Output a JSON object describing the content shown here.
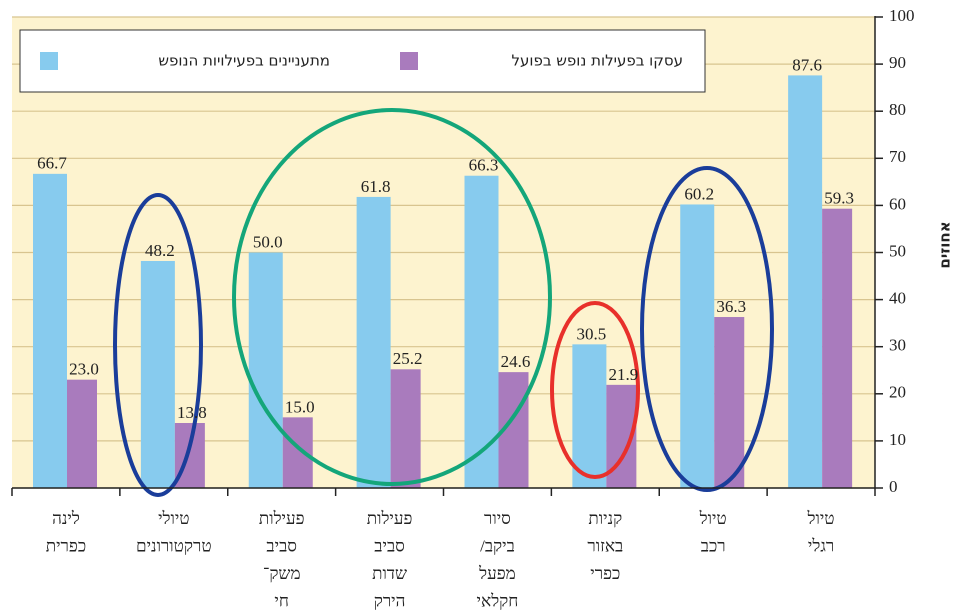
{
  "chart_data": {
    "type": "bar",
    "categories": [
      [
        "לינה",
        "כפרית"
      ],
      [
        "טיולי",
        "טרקטורונים"
      ],
      [
        "פעילות",
        "סביב",
        "משק־",
        "חי"
      ],
      [
        "פעילות",
        "סביב",
        "שדות",
        "הירק"
      ],
      [
        "סיור",
        "ביקב/",
        "מפעל",
        "חקלאי"
      ],
      [
        "קניות",
        "באזור",
        "כפרי"
      ],
      [
        "טיול",
        "רכב"
      ],
      [
        "טיול",
        "רגלי"
      ]
    ],
    "series": [
      {
        "name": "מתעניינים בפעילויות הנופש",
        "color": "#87cbee",
        "values": [
          66.7,
          48.2,
          50.0,
          61.8,
          66.3,
          30.5,
          60.2,
          87.6
        ],
        "value_labels": [
          "66.7",
          "48.2",
          "50.0",
          "61.8",
          "66.3",
          "30.5",
          "60.2",
          "87.6"
        ]
      },
      {
        "name": "עסקו בפעילות נופש בפועל",
        "color": "#a97bbd",
        "values": [
          23.0,
          13.8,
          15.0,
          25.2,
          24.6,
          21.9,
          36.3,
          59.3
        ],
        "value_labels": [
          "23.0",
          "13.8",
          "15.0",
          "25.2",
          "24.6",
          "21.9",
          "36.3",
          "59.3"
        ]
      }
    ],
    "ylabel": "אחוזים",
    "ylim": [
      0,
      100
    ],
    "yticks": [
      0,
      10,
      20,
      30,
      40,
      50,
      60,
      70,
      80,
      90,
      100
    ],
    "grid": true
  }
}
